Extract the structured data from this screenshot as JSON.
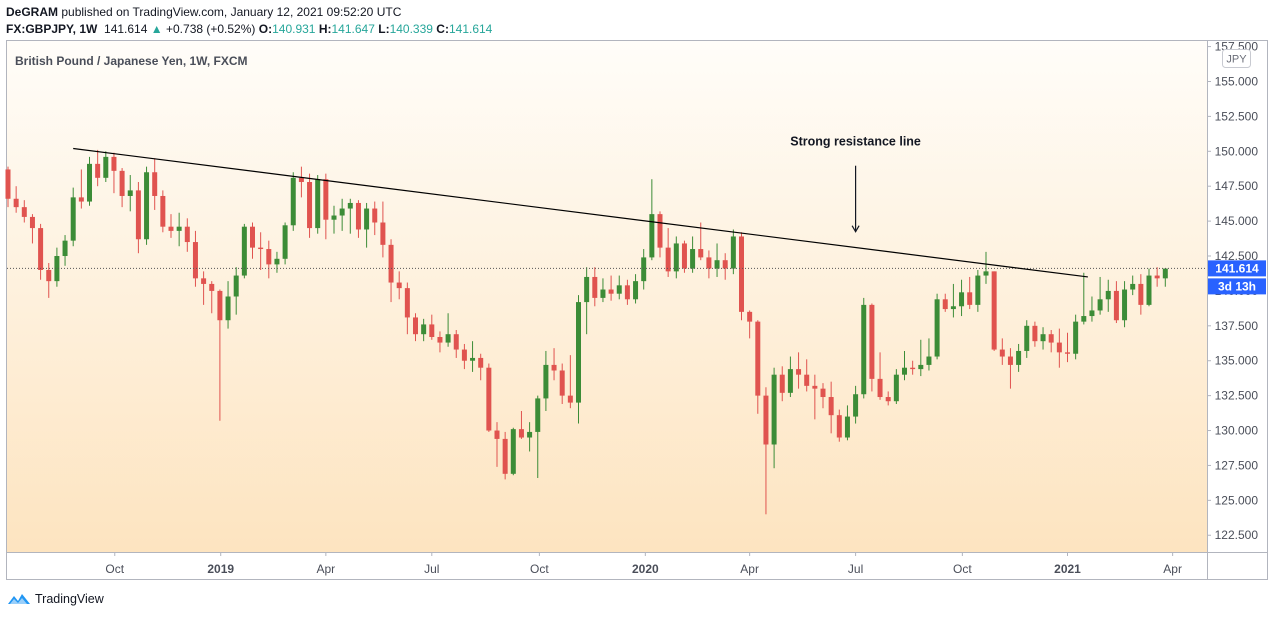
{
  "header": {
    "author": "DeGRAM",
    "published_text": "published on TradingView.com, January 12, 2021 09:52:20 UTC",
    "symbol": "FX:GBPJPY, 1W",
    "last_price": "141.614",
    "change": "+0.738 (+0.52%)",
    "open_label": "O:",
    "open_value": "140.931",
    "high_label": "H:",
    "high_value": "141.647",
    "low_label": "L:",
    "low_value": "140.339",
    "close_label": "C:",
    "close_value": "141.614"
  },
  "footer": {
    "brand": "TradingView"
  },
  "colors": {
    "up": "#3c8c37",
    "down": "#e0534f",
    "line": "#000000",
    "price_label": "#2962ff",
    "bg_top": "#fffdf9",
    "bg_bottom": "#fde4c0"
  },
  "chart_data": {
    "type": "candlestick",
    "title": "British Pound / Japanese Yen, 1W, FXCM",
    "currency": "JPY",
    "ylim": [
      121.3,
      157.9
    ],
    "y_ticks": [
      "122.500",
      "125.000",
      "127.500",
      "130.000",
      "132.500",
      "135.000",
      "137.500",
      "140.000",
      "142.500",
      "145.000",
      "147.500",
      "150.000",
      "152.500",
      "155.000",
      "157.500"
    ],
    "x_ticks": [
      {
        "label": "Oct",
        "index": 13.1,
        "bold": false
      },
      {
        "label": "2019",
        "index": 26.1,
        "bold": true
      },
      {
        "label": "Apr",
        "index": 39.0,
        "bold": false
      },
      {
        "label": "Jul",
        "index": 52.0,
        "bold": false
      },
      {
        "label": "Oct",
        "index": 65.2,
        "bold": false
      },
      {
        "label": "2020",
        "index": 78.2,
        "bold": true
      },
      {
        "label": "Apr",
        "index": 91.0,
        "bold": false
      },
      {
        "label": "Jul",
        "index": 104.0,
        "bold": false
      },
      {
        "label": "Oct",
        "index": 117.1,
        "bold": false
      },
      {
        "label": "2021",
        "index": 130.0,
        "bold": true
      },
      {
        "label": "Apr",
        "index": 142.9,
        "bold": false
      }
    ],
    "last_price_label": "141.614",
    "countdown_label": "3d 13h",
    "annotation": {
      "text": "Strong resistance line",
      "index": 104.0,
      "price": 150.4
    },
    "resistance_line": {
      "start": [
        8.0,
        150.2
      ],
      "end": [
        132.5,
        141.0
      ]
    },
    "candles": [
      [
        148.7,
        148.9,
        146.0,
        146.6
      ],
      [
        146.6,
        147.5,
        145.6,
        146.0
      ],
      [
        146.0,
        146.5,
        144.9,
        145.3
      ],
      [
        145.3,
        145.5,
        143.4,
        144.5
      ],
      [
        144.5,
        144.8,
        140.8,
        141.5
      ],
      [
        141.5,
        142.0,
        139.5,
        140.7
      ],
      [
        140.7,
        143.1,
        140.3,
        142.5
      ],
      [
        142.5,
        144.0,
        141.8,
        143.6
      ],
      [
        143.6,
        147.4,
        143.2,
        146.7
      ],
      [
        146.7,
        148.7,
        145.9,
        146.4
      ],
      [
        146.4,
        149.6,
        146.1,
        149.1
      ],
      [
        149.1,
        150.1,
        147.5,
        148.1
      ],
      [
        148.1,
        150.0,
        147.8,
        149.6
      ],
      [
        149.6,
        149.9,
        147.0,
        148.6
      ],
      [
        148.6,
        148.8,
        146.0,
        146.8
      ],
      [
        146.8,
        148.3,
        145.7,
        147.2
      ],
      [
        147.2,
        147.8,
        142.7,
        143.7
      ],
      [
        143.7,
        148.9,
        143.3,
        148.5
      ],
      [
        148.5,
        149.5,
        145.8,
        146.8
      ],
      [
        146.8,
        147.2,
        144.2,
        144.6
      ],
      [
        144.6,
        145.5,
        143.8,
        144.3
      ],
      [
        144.3,
        145.6,
        143.2,
        144.6
      ],
      [
        144.6,
        145.2,
        142.8,
        143.5
      ],
      [
        143.5,
        144.3,
        140.3,
        140.9
      ],
      [
        140.9,
        141.4,
        139.0,
        140.5
      ],
      [
        140.5,
        140.7,
        138.4,
        140.0
      ],
      [
        140.0,
        140.1,
        130.7,
        137.9
      ],
      [
        137.9,
        140.7,
        137.3,
        139.6
      ],
      [
        139.6,
        141.7,
        138.3,
        141.1
      ],
      [
        141.1,
        144.8,
        140.9,
        144.6
      ],
      [
        144.6,
        144.9,
        142.3,
        143.1
      ],
      [
        143.1,
        144.2,
        141.5,
        143.0
      ],
      [
        143.0,
        143.6,
        140.9,
        141.9
      ],
      [
        141.9,
        142.8,
        141.3,
        142.3
      ],
      [
        142.3,
        144.9,
        141.9,
        144.7
      ],
      [
        144.7,
        148.5,
        144.3,
        148.1
      ],
      [
        148.1,
        148.9,
        146.7,
        147.8
      ],
      [
        147.8,
        148.4,
        143.8,
        144.5
      ],
      [
        144.5,
        148.3,
        144.1,
        148.0
      ],
      [
        148.0,
        148.4,
        143.7,
        145.1
      ],
      [
        145.1,
        146.1,
        144.1,
        145.4
      ],
      [
        145.4,
        146.6,
        144.3,
        145.9
      ],
      [
        145.9,
        146.6,
        144.1,
        146.3
      ],
      [
        146.3,
        146.5,
        143.8,
        144.4
      ],
      [
        144.4,
        146.3,
        143.1,
        145.9
      ],
      [
        145.9,
        146.4,
        144.0,
        144.9
      ],
      [
        144.9,
        146.4,
        142.4,
        143.3
      ],
      [
        143.3,
        143.7,
        139.2,
        140.6
      ],
      [
        140.6,
        141.4,
        139.4,
        140.2
      ],
      [
        140.2,
        140.6,
        136.9,
        138.1
      ],
      [
        138.1,
        138.4,
        136.4,
        136.9
      ],
      [
        136.9,
        138.0,
        136.4,
        137.6
      ],
      [
        137.6,
        138.3,
        136.5,
        136.7
      ],
      [
        136.7,
        137.1,
        135.6,
        136.3
      ],
      [
        136.3,
        138.4,
        136.0,
        136.9
      ],
      [
        136.9,
        137.2,
        135.2,
        135.8
      ],
      [
        135.8,
        136.2,
        134.4,
        135.0
      ],
      [
        135.0,
        136.4,
        134.2,
        135.2
      ],
      [
        135.2,
        135.5,
        133.6,
        134.5
      ],
      [
        134.5,
        134.8,
        129.9,
        130.0
      ],
      [
        130.0,
        130.6,
        127.4,
        129.4
      ],
      [
        129.4,
        129.9,
        126.5,
        126.9
      ],
      [
        126.9,
        130.2,
        126.8,
        130.1
      ],
      [
        130.1,
        131.4,
        129.4,
        129.5
      ],
      [
        129.5,
        130.6,
        128.5,
        129.9
      ],
      [
        129.9,
        132.5,
        126.6,
        132.3
      ],
      [
        132.3,
        135.7,
        131.4,
        134.7
      ],
      [
        134.7,
        135.9,
        133.6,
        134.3
      ],
      [
        134.3,
        134.8,
        131.9,
        132.5
      ],
      [
        132.5,
        135.4,
        131.6,
        132.0
      ],
      [
        132.0,
        139.7,
        130.5,
        139.2
      ],
      [
        139.2,
        141.7,
        136.9,
        141.0
      ],
      [
        141.0,
        141.7,
        138.9,
        139.5
      ],
      [
        139.5,
        140.9,
        139.2,
        140.1
      ],
      [
        140.1,
        141.1,
        139.3,
        139.8
      ],
      [
        139.8,
        141.1,
        139.4,
        140.4
      ],
      [
        140.4,
        140.8,
        139.0,
        139.4
      ],
      [
        139.4,
        141.2,
        139.1,
        140.7
      ],
      [
        140.7,
        143.0,
        140.1,
        142.4
      ],
      [
        142.4,
        148.0,
        142.2,
        145.5
      ],
      [
        145.5,
        145.7,
        142.4,
        143.1
      ],
      [
        143.1,
        144.5,
        141.0,
        141.4
      ],
      [
        141.4,
        143.9,
        140.9,
        143.4
      ],
      [
        143.4,
        143.6,
        141.3,
        141.6
      ],
      [
        141.6,
        143.9,
        141.3,
        143.0
      ],
      [
        143.0,
        144.9,
        142.2,
        142.4
      ],
      [
        142.4,
        142.9,
        140.9,
        141.6
      ],
      [
        141.6,
        143.4,
        141.0,
        142.2
      ],
      [
        142.2,
        142.7,
        140.8,
        141.6
      ],
      [
        141.6,
        144.4,
        141.2,
        143.9
      ],
      [
        143.9,
        144.2,
        137.9,
        138.5
      ],
      [
        138.5,
        138.6,
        136.6,
        137.8
      ],
      [
        137.8,
        137.9,
        131.2,
        132.5
      ],
      [
        132.5,
        133.1,
        124.0,
        129.0
      ],
      [
        129.0,
        134.5,
        127.3,
        134.0
      ],
      [
        134.0,
        134.6,
        132.1,
        132.7
      ],
      [
        132.7,
        135.3,
        132.4,
        134.4
      ],
      [
        134.4,
        135.6,
        133.0,
        134.0
      ],
      [
        134.0,
        135.1,
        132.8,
        133.2
      ],
      [
        133.2,
        134.0,
        130.8,
        133.0
      ],
      [
        133.0,
        133.4,
        131.6,
        132.4
      ],
      [
        132.4,
        133.5,
        129.8,
        131.1
      ],
      [
        131.1,
        131.5,
        129.2,
        129.5
      ],
      [
        129.5,
        131.8,
        129.3,
        131.0
      ],
      [
        131.0,
        133.2,
        130.5,
        132.6
      ],
      [
        132.6,
        139.5,
        132.3,
        139.0
      ],
      [
        139.0,
        139.1,
        132.8,
        133.7
      ],
      [
        133.7,
        135.6,
        132.2,
        132.4
      ],
      [
        132.4,
        132.8,
        131.8,
        132.1
      ],
      [
        132.1,
        134.4,
        131.9,
        134.0
      ],
      [
        134.0,
        135.7,
        133.6,
        134.5
      ],
      [
        134.5,
        135.0,
        134.0,
        134.4
      ],
      [
        134.4,
        136.5,
        133.9,
        134.7
      ],
      [
        134.7,
        136.6,
        134.3,
        135.3
      ],
      [
        135.3,
        139.8,
        135.1,
        139.4
      ],
      [
        139.4,
        139.8,
        138.5,
        138.7
      ],
      [
        138.7,
        140.5,
        138.1,
        138.9
      ],
      [
        138.9,
        140.8,
        138.2,
        139.9
      ],
      [
        139.9,
        141.0,
        138.7,
        139.0
      ],
      [
        139.0,
        141.5,
        138.5,
        141.1
      ],
      [
        141.1,
        142.8,
        140.5,
        141.4
      ],
      [
        141.4,
        141.4,
        135.7,
        135.8
      ],
      [
        135.8,
        136.6,
        134.7,
        135.3
      ],
      [
        135.3,
        135.9,
        133.0,
        134.7
      ],
      [
        134.7,
        136.2,
        134.2,
        135.7
      ],
      [
        135.7,
        137.9,
        135.2,
        137.5
      ],
      [
        137.5,
        137.8,
        136.0,
        136.4
      ],
      [
        136.4,
        137.4,
        135.8,
        136.9
      ],
      [
        136.9,
        137.2,
        135.6,
        136.3
      ],
      [
        136.3,
        137.3,
        134.5,
        135.6
      ],
      [
        135.6,
        137.0,
        134.9,
        135.5
      ],
      [
        135.5,
        138.3,
        135.1,
        137.8
      ],
      [
        137.8,
        141.3,
        137.6,
        138.2
      ],
      [
        138.2,
        139.6,
        137.8,
        138.6
      ],
      [
        138.6,
        141.0,
        138.3,
        139.4
      ],
      [
        139.4,
        140.8,
        138.5,
        140.0
      ],
      [
        140.0,
        140.7,
        137.7,
        137.9
      ],
      [
        137.9,
        140.7,
        137.4,
        140.1
      ],
      [
        140.1,
        141.1,
        139.7,
        140.5
      ],
      [
        140.5,
        141.2,
        138.3,
        139.0
      ],
      [
        139.0,
        141.6,
        138.9,
        141.1
      ],
      [
        141.1,
        141.7,
        140.3,
        140.9
      ],
      [
        140.9,
        141.6,
        140.3,
        141.6
      ]
    ]
  }
}
